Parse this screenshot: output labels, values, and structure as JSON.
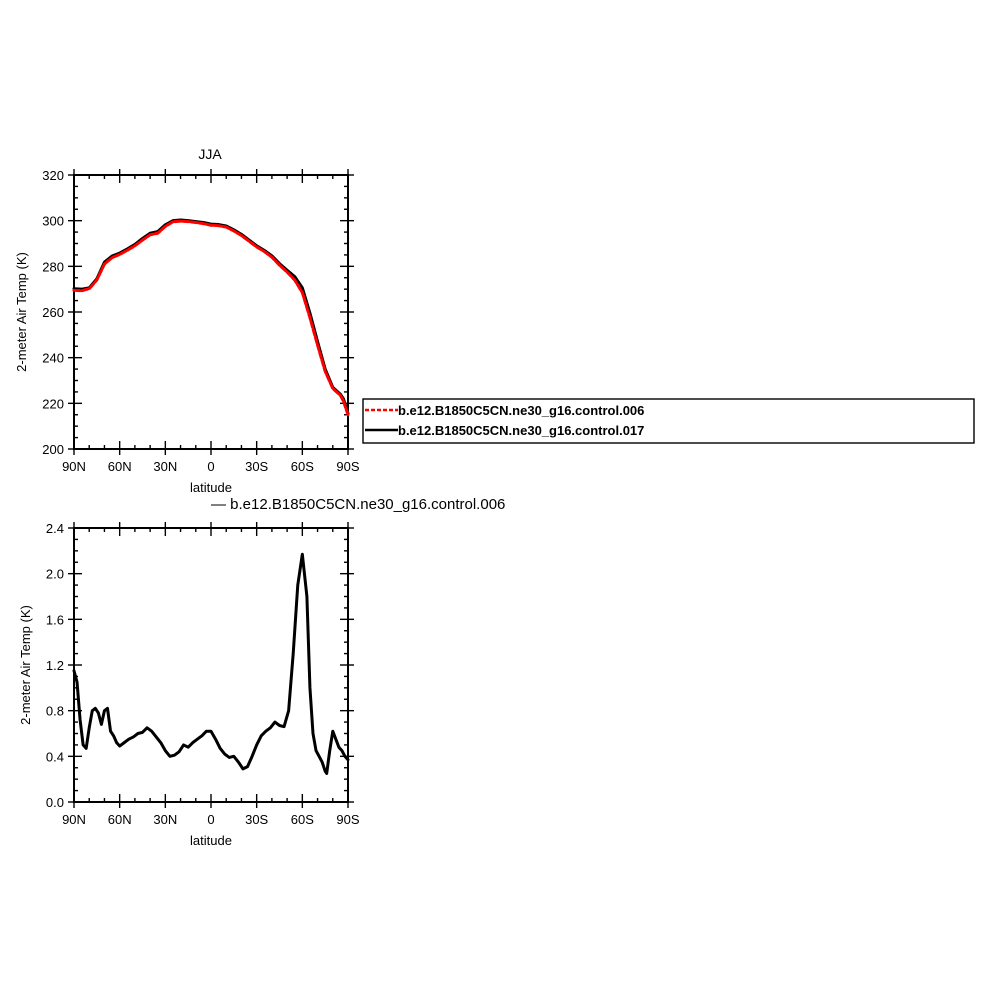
{
  "chart_data": [
    {
      "type": "line",
      "title": "JJA",
      "xlabel": "latitude",
      "ylabel": "2-meter Air Temp (K)",
      "xlim": [
        90,
        -90
      ],
      "ylim": [
        200,
        320
      ],
      "x_ticks": [
        90,
        60,
        30,
        0,
        -30,
        -60,
        -90
      ],
      "x_tick_labels": [
        "90N",
        "60N",
        "30N",
        "0",
        "30S",
        "60S",
        "90S"
      ],
      "y_ticks": [
        200,
        220,
        240,
        260,
        280,
        300,
        320
      ],
      "y_tick_labels": [
        "200",
        "220",
        "240",
        "260",
        "280",
        "300",
        "320"
      ],
      "legend_position": "right",
      "series": [
        {
          "name": "b.e12.B1850C5CN.ne30_g16.control.006",
          "color": "#ff0000",
          "dash": "dashed",
          "points": [
            [
              90,
              269.5
            ],
            [
              85,
              269.3
            ],
            [
              80,
              270.2
            ],
            [
              75,
              274
            ],
            [
              70,
              281
            ],
            [
              65,
              283.8
            ],
            [
              60,
              285.2
            ],
            [
              55,
              287
            ],
            [
              50,
              289
            ],
            [
              45,
              291.5
            ],
            [
              40,
              293.8
            ],
            [
              35,
              294.5
            ],
            [
              30,
              297.5
            ],
            [
              25,
              299.5
            ],
            [
              20,
              299.8
            ],
            [
              15,
              299.6
            ],
            [
              10,
              299.2
            ],
            [
              5,
              298.7
            ],
            [
              0,
              298
            ],
            [
              -5,
              297.8
            ],
            [
              -10,
              297.2
            ],
            [
              -15,
              295.5
            ],
            [
              -20,
              293.5
            ],
            [
              -25,
              291
            ],
            [
              -30,
              288.5
            ],
            [
              -35,
              286.5
            ],
            [
              -40,
              284
            ],
            [
              -45,
              280.5
            ],
            [
              -50,
              277.5
            ],
            [
              -55,
              274
            ],
            [
              -60,
              268.5
            ],
            [
              -65,
              257.5
            ],
            [
              -70,
              245.5
            ],
            [
              -75,
              234
            ],
            [
              -80,
              226.5
            ],
            [
              -85,
              223.5
            ],
            [
              -87,
              221
            ],
            [
              -90,
              215
            ]
          ]
        },
        {
          "name": "b.e12.B1850C5CN.ne30_g16.control.017",
          "color": "#000000",
          "dash": "solid",
          "points": [
            [
              90,
              270.2
            ],
            [
              85,
              270
            ],
            [
              80,
              270.6
            ],
            [
              75,
              274.5
            ],
            [
              70,
              281.8
            ],
            [
              65,
              284.5
            ],
            [
              60,
              285.8
            ],
            [
              55,
              287.6
            ],
            [
              50,
              289.6
            ],
            [
              45,
              292.2
            ],
            [
              40,
              294.5
            ],
            [
              35,
              295.2
            ],
            [
              30,
              298.2
            ],
            [
              25,
              300
            ],
            [
              20,
              300.3
            ],
            [
              15,
              300
            ],
            [
              10,
              299.6
            ],
            [
              5,
              299.2
            ],
            [
              0,
              298.5
            ],
            [
              -5,
              298.3
            ],
            [
              -10,
              297.7
            ],
            [
              -15,
              296
            ],
            [
              -20,
              294
            ],
            [
              -25,
              291.5
            ],
            [
              -30,
              289
            ],
            [
              -35,
              287
            ],
            [
              -40,
              284.6
            ],
            [
              -45,
              281.2
            ],
            [
              -50,
              278.3
            ],
            [
              -55,
              275.5
            ],
            [
              -60,
              270.6
            ],
            [
              -65,
              259.5
            ],
            [
              -70,
              247
            ],
            [
              -75,
              235
            ],
            [
              -80,
              227
            ],
            [
              -85,
              224
            ],
            [
              -87,
              222
            ],
            [
              -90,
              215.5
            ]
          ]
        }
      ]
    },
    {
      "type": "line",
      "title": "— b.e12.B1850C5CN.ne30_g16.control.006",
      "xlabel": "latitude",
      "ylabel": "2-meter Air Temp (K)",
      "xlim": [
        90,
        -90
      ],
      "ylim": [
        0.0,
        2.4
      ],
      "x_ticks": [
        90,
        60,
        30,
        0,
        -30,
        -60,
        -90
      ],
      "x_tick_labels": [
        "90N",
        "60N",
        "30N",
        "0",
        "30S",
        "60S",
        "90S"
      ],
      "y_ticks": [
        0.0,
        0.4,
        0.8,
        1.2,
        1.6,
        2.0,
        2.4
      ],
      "y_tick_labels": [
        "0.0",
        "0.4",
        "0.8",
        "1.2",
        "1.6",
        "2.0",
        "2.4"
      ],
      "series": [
        {
          "color": "#000000",
          "dash": "solid",
          "points": [
            [
              90,
              1.15
            ],
            [
              88,
              1.05
            ],
            [
              86,
              0.72
            ],
            [
              84,
              0.5
            ],
            [
              82,
              0.47
            ],
            [
              80,
              0.65
            ],
            [
              78,
              0.8
            ],
            [
              76,
              0.82
            ],
            [
              74,
              0.78
            ],
            [
              72,
              0.68
            ],
            [
              70,
              0.8
            ],
            [
              68,
              0.82
            ],
            [
              66,
              0.62
            ],
            [
              64,
              0.58
            ],
            [
              62,
              0.52
            ],
            [
              60,
              0.49
            ],
            [
              57,
              0.52
            ],
            [
              54,
              0.55
            ],
            [
              51,
              0.57
            ],
            [
              48,
              0.6
            ],
            [
              45,
              0.61
            ],
            [
              42,
              0.65
            ],
            [
              39,
              0.62
            ],
            [
              36,
              0.57
            ],
            [
              33,
              0.52
            ],
            [
              30,
              0.45
            ],
            [
              27,
              0.4
            ],
            [
              24,
              0.41
            ],
            [
              21,
              0.44
            ],
            [
              18,
              0.5
            ],
            [
              15,
              0.48
            ],
            [
              12,
              0.52
            ],
            [
              9,
              0.55
            ],
            [
              6,
              0.58
            ],
            [
              3,
              0.62
            ],
            [
              0,
              0.62
            ],
            [
              -3,
              0.55
            ],
            [
              -6,
              0.47
            ],
            [
              -9,
              0.42
            ],
            [
              -12,
              0.39
            ],
            [
              -15,
              0.4
            ],
            [
              -18,
              0.35
            ],
            [
              -21,
              0.29
            ],
            [
              -24,
              0.31
            ],
            [
              -27,
              0.4
            ],
            [
              -30,
              0.5
            ],
            [
              -33,
              0.58
            ],
            [
              -36,
              0.62
            ],
            [
              -39,
              0.65
            ],
            [
              -42,
              0.7
            ],
            [
              -45,
              0.67
            ],
            [
              -48,
              0.66
            ],
            [
              -51,
              0.8
            ],
            [
              -54,
              1.3
            ],
            [
              -57,
              1.9
            ],
            [
              -60,
              2.17
            ],
            [
              -63,
              1.8
            ],
            [
              -65,
              1.0
            ],
            [
              -67,
              0.6
            ],
            [
              -69,
              0.45
            ],
            [
              -71,
              0.4
            ],
            [
              -73,
              0.35
            ],
            [
              -75,
              0.27
            ],
            [
              -76,
              0.25
            ],
            [
              -78,
              0.45
            ],
            [
              -80,
              0.62
            ],
            [
              -82,
              0.55
            ],
            [
              -84,
              0.48
            ],
            [
              -86,
              0.45
            ],
            [
              -88,
              0.4
            ],
            [
              -90,
              0.37
            ]
          ]
        }
      ]
    }
  ]
}
